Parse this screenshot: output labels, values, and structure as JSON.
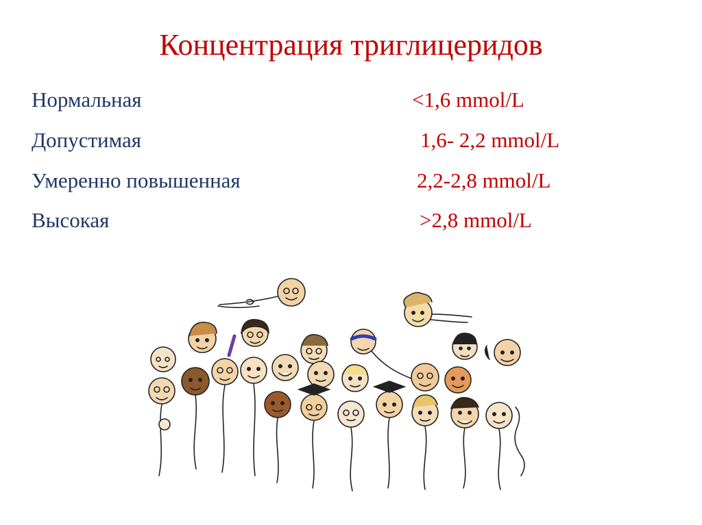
{
  "title": "Концентрация триглицеридов",
  "rows": [
    {
      "label": "Нормальная",
      "value": "<1,6 mmol/L"
    },
    {
      "label": "Допустимая",
      "value": "1,6- 2,2 mmol/L"
    },
    {
      "label": "Умеренно повышенная",
      "value": "2,2-2,8 mmol/L"
    },
    {
      "label": "Высокая",
      "value": ">2,8 mmol/L"
    }
  ],
  "colors": {
    "title": "#c00000",
    "label": "#1f3864",
    "value": "#c00000"
  },
  "illustration": {
    "icon": "crowd-of-cartoon-people-illustration"
  }
}
